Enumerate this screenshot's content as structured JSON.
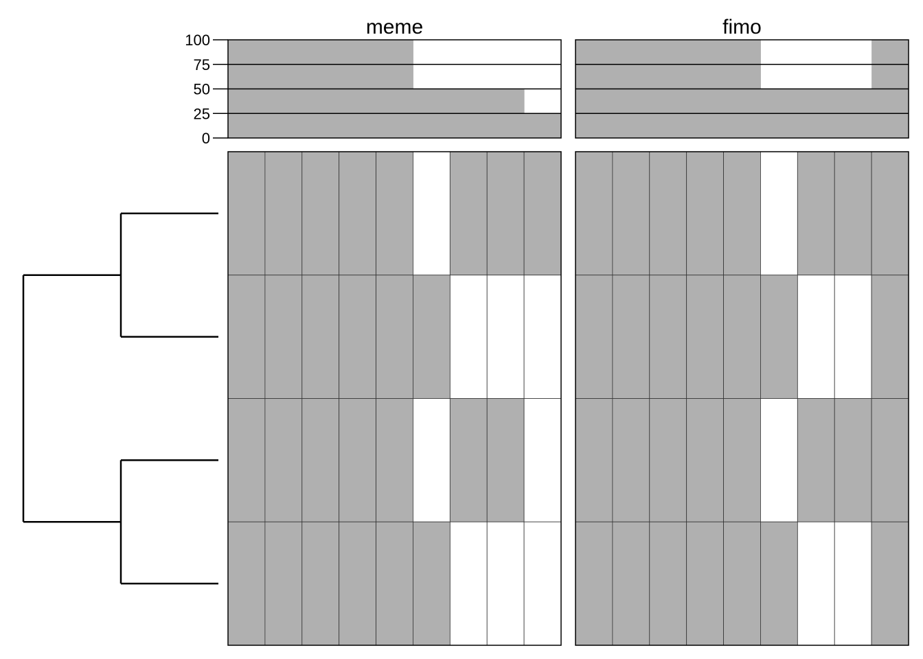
{
  "chart_data": {
    "type": "heatmap",
    "panels": [
      {
        "title": "meme",
        "columns": 9,
        "rows": [
          [
            1,
            1,
            1,
            1,
            1,
            0,
            1,
            1,
            1
          ],
          [
            1,
            1,
            1,
            1,
            1,
            1,
            0,
            0,
            0
          ],
          [
            1,
            1,
            1,
            1,
            1,
            0,
            1,
            1,
            0
          ],
          [
            1,
            1,
            1,
            1,
            1,
            1,
            0,
            0,
            0
          ]
        ],
        "column_percent": [
          100,
          100,
          100,
          100,
          100,
          50,
          50,
          50,
          25
        ]
      },
      {
        "title": "fimo",
        "columns": 9,
        "rows": [
          [
            1,
            1,
            1,
            1,
            1,
            0,
            1,
            1,
            1
          ],
          [
            1,
            1,
            1,
            1,
            1,
            1,
            0,
            0,
            1
          ],
          [
            1,
            1,
            1,
            1,
            1,
            0,
            1,
            1,
            1
          ],
          [
            1,
            1,
            1,
            1,
            1,
            1,
            0,
            0,
            1
          ]
        ],
        "column_percent": [
          100,
          100,
          100,
          100,
          100,
          50,
          50,
          50,
          100
        ]
      }
    ],
    "top_axis": {
      "ticks": [
        0,
        25,
        50,
        75,
        100
      ],
      "tick_labels": [
        "0",
        "25",
        "50",
        "75",
        "100"
      ],
      "ylim": [
        0,
        100
      ],
      "gridlines_at": [
        25,
        50,
        75
      ]
    },
    "dendrogram": {
      "leaves": 4,
      "merges": [
        {
          "left": 0,
          "right": 1,
          "height": 1
        },
        {
          "left": 2,
          "right": 3,
          "height": 1
        },
        {
          "left": "m0",
          "right": "m1",
          "height": 2
        }
      ]
    },
    "colors": {
      "filled": "#b0b0b0",
      "empty": "#ffffff",
      "line": "#000000"
    },
    "legend": "none",
    "grid": true
  }
}
